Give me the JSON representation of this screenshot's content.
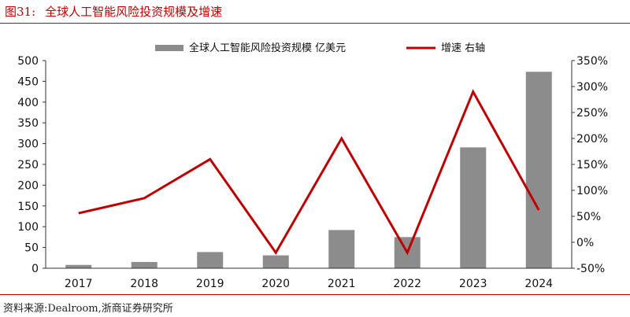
{
  "figure": {
    "number": "图31:",
    "title": "全球人工智能风险投资规模及增速"
  },
  "source": "资料来源:Dealroom,浙商证券研究所",
  "colors": {
    "bar": "#8c8c8c",
    "line": "#c00000",
    "accent": "#c00000"
  },
  "chart_data": {
    "type": "bar",
    "categories": [
      "2017",
      "2018",
      "2019",
      "2020",
      "2021",
      "2022",
      "2023",
      "2024"
    ],
    "series": [
      {
        "name": "全球人工智能风险投资规模 亿美元",
        "type": "bar",
        "axis": "left",
        "values": [
          8,
          15,
          39,
          31,
          92,
          75,
          291,
          473
        ]
      },
      {
        "name": "增速 右轴",
        "type": "line",
        "axis": "right",
        "values": [
          56,
          85,
          160,
          -20,
          200,
          -20,
          290,
          62
        ]
      }
    ],
    "left_axis": {
      "ylim": [
        0,
        500
      ],
      "ticks": [
        "0",
        "50",
        "100",
        "150",
        "200",
        "250",
        "300",
        "350",
        "400",
        "450",
        "500"
      ]
    },
    "right_axis": {
      "ylim": [
        -50,
        350
      ],
      "ticks": [
        "-50%",
        "0%",
        "50%",
        "100%",
        "150%",
        "200%",
        "250%",
        "300%",
        "350%"
      ]
    },
    "legend": {
      "position": "top"
    },
    "grid": false
  }
}
